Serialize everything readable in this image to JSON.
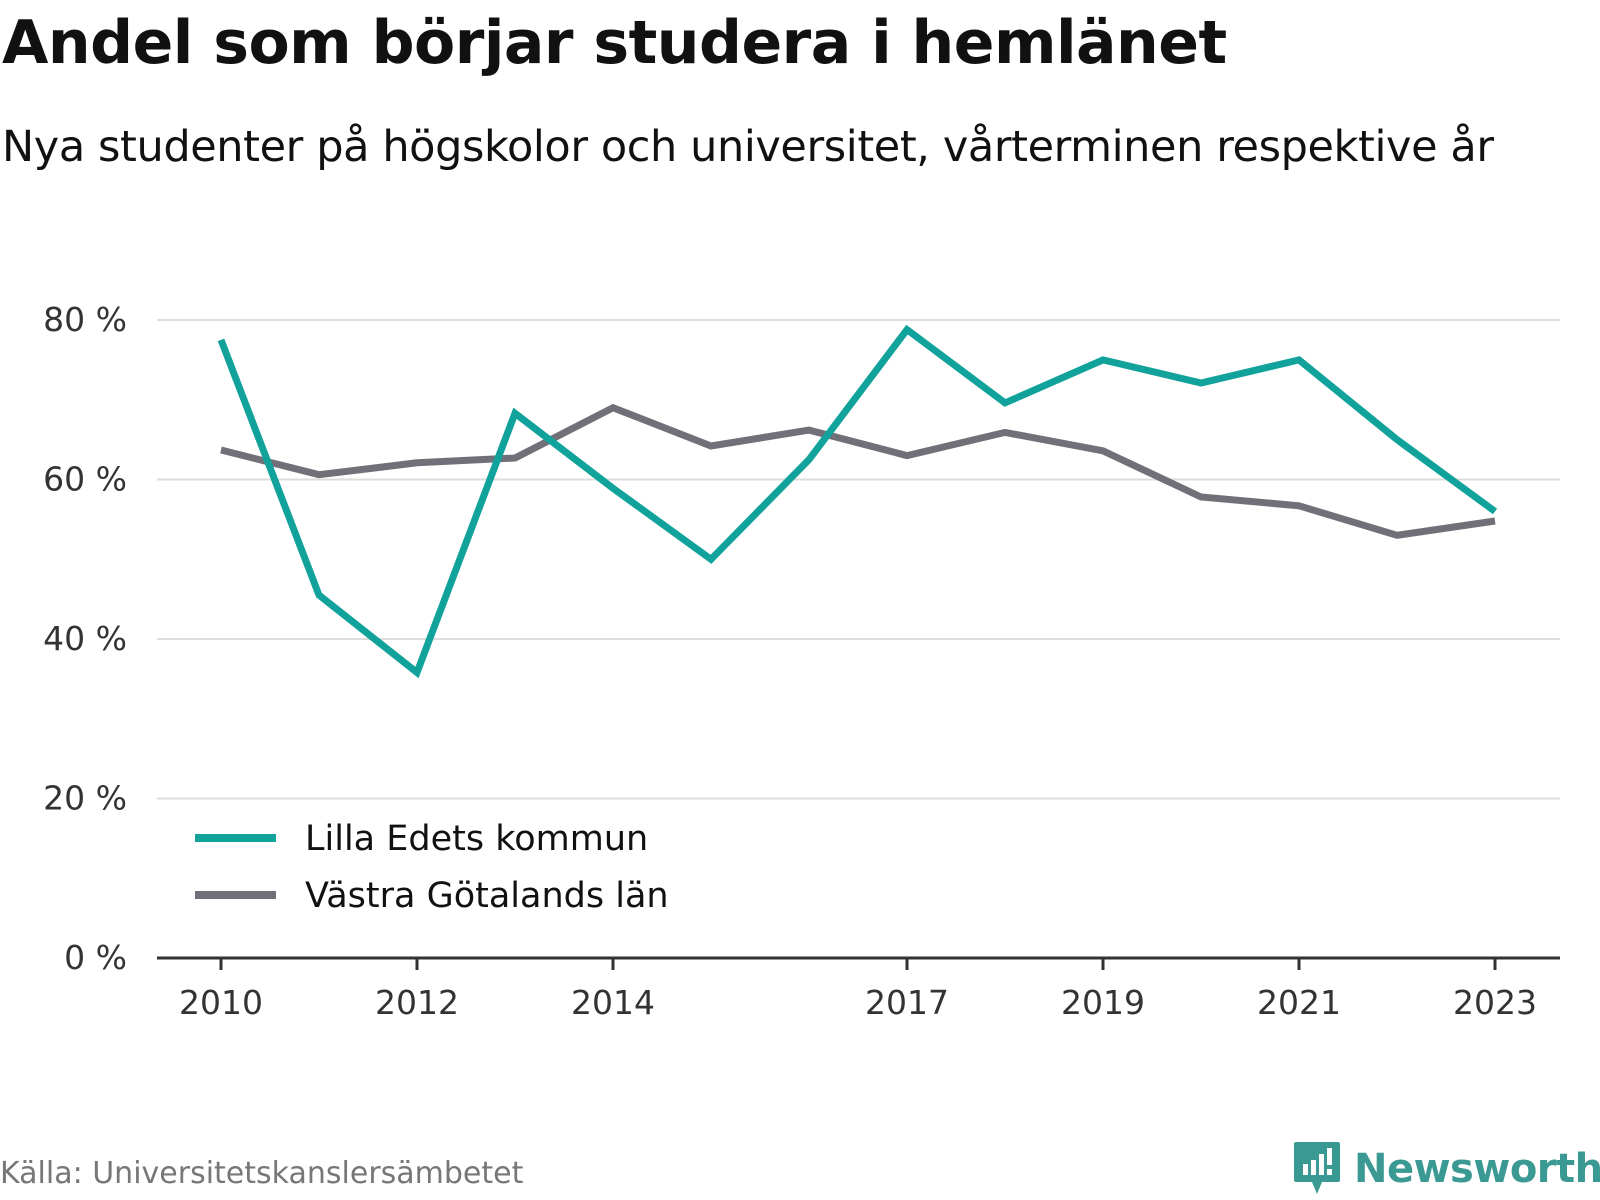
{
  "title": "Andel som börjar studera i hemlänet",
  "subtitle": "Nya studenter på högskolor och universitet, vårterminen respektive år",
  "source": "Källa: Universitetskanslersämbetet",
  "brand": {
    "name": "Newsworthy",
    "icon": "newsworthy-logo-icon",
    "color": "#3a9a93"
  },
  "chart_data": {
    "type": "line",
    "x": [
      2010,
      2011,
      2012,
      2013,
      2014,
      2015,
      2016,
      2017,
      2018,
      2019,
      2020,
      2021,
      2022,
      2023
    ],
    "x_tick_labels": [
      "2010",
      "2012",
      "2014",
      "2017",
      "2019",
      "2021",
      "2023"
    ],
    "y_ticks": [
      0,
      20,
      40,
      60,
      80
    ],
    "y_tick_labels": [
      "0 %",
      "20 %",
      "40 %",
      "60 %",
      "80 %"
    ],
    "ylim": [
      0,
      80
    ],
    "grid": true,
    "legend_position": "bottom-left",
    "series": [
      {
        "name": "Lilla Edets kommun",
        "color": "#11a39b",
        "values": [
          77.5,
          45.5,
          35.8,
          68.3,
          58.9,
          50.0,
          62.5,
          78.8,
          69.6,
          75.0,
          72.1,
          75.0,
          65.0,
          56.0
        ]
      },
      {
        "name": "Västra Götalands län",
        "color": "#717078",
        "values": [
          63.7,
          60.6,
          62.1,
          62.7,
          69.0,
          64.2,
          66.2,
          63.0,
          65.9,
          63.6,
          57.8,
          56.7,
          53.0,
          54.8
        ]
      }
    ]
  }
}
